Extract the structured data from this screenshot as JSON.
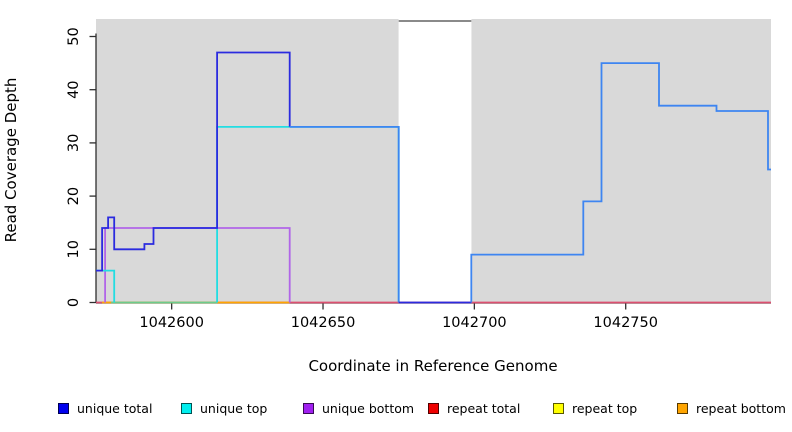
{
  "figure": {
    "background": "#ffffff",
    "plot_background": "#d9d9d9"
  },
  "chart_data": {
    "type": "line",
    "subtype": "step-coverage",
    "title": "",
    "xlabel": "Coordinate in Reference Genome",
    "ylabel": "Read Coverage Depth",
    "xlim": [
      1042575,
      1042798
    ],
    "ylim": [
      0,
      53
    ],
    "grid": false,
    "x_ticks": [
      {
        "value": 1042600,
        "label": "1042600"
      },
      {
        "value": 1042650,
        "label": "1042650"
      },
      {
        "value": 1042700,
        "label": "1042700"
      },
      {
        "value": 1042750,
        "label": "1042750"
      }
    ],
    "y_ticks": [
      {
        "value": 0,
        "label": "0"
      },
      {
        "value": 10,
        "label": "10"
      },
      {
        "value": 20,
        "label": "20"
      },
      {
        "value": 30,
        "label": "30"
      },
      {
        "value": 40,
        "label": "40"
      },
      {
        "value": 50,
        "label": "50"
      }
    ],
    "masked_region": {
      "x_start": 1042675,
      "x_end": 1042699,
      "fill": "#ffffff",
      "top_border_color": "#8a8a8a"
    },
    "series": [
      {
        "name": "repeat total",
        "segments": [
          {
            "color": "#dc5070",
            "points": [
              [
                1042575,
                0
              ]
            ],
            "end": 1042798
          }
        ]
      },
      {
        "name": "repeat bottom",
        "segments": [
          {
            "color": "#ffa500",
            "points": [
              [
                1042577,
                0
              ]
            ],
            "end": 1042639
          }
        ]
      },
      {
        "name": "repeat top",
        "segments": [
          {
            "color": "#6ccb8c",
            "points": [
              [
                1042580,
                0
              ]
            ],
            "end": 1042615
          }
        ]
      },
      {
        "name": "unique bottom",
        "segments": [
          {
            "color": "#b165e8",
            "points": [
              [
                1042578,
                0
              ],
              [
                1042578,
                14
              ],
              [
                1042639,
                0
              ]
            ],
            "end": 1042639
          }
        ]
      },
      {
        "name": "unique top",
        "segments": [
          {
            "color": "#22dde2",
            "points": [
              [
                1042575,
                6
              ],
              [
                1042581,
                0
              ]
            ],
            "end": 1042581
          },
          {
            "color": "#22dde2",
            "points": [
              [
                1042615,
                0
              ],
              [
                1042615,
                33
              ],
              [
                1042675,
                0
              ]
            ],
            "end": 1042675
          }
        ]
      },
      {
        "name": "unique total",
        "segments": [
          {
            "color": "#2b2bdf",
            "points": [
              [
                1042575,
                6
              ],
              [
                1042577,
                14
              ],
              [
                1042579,
                16
              ],
              [
                1042581,
                10
              ],
              [
                1042591,
                11
              ],
              [
                1042594,
                14
              ],
              [
                1042615,
                47
              ],
              [
                1042639,
                33
              ]
            ],
            "end": 1042639
          },
          {
            "color": "#3e85f1",
            "points": [
              [
                1042639,
                33
              ],
              [
                1042675,
                0
              ]
            ],
            "end": 1042675
          },
          {
            "color": "#2b2bdf",
            "points": [
              [
                1042675,
                0
              ]
            ],
            "end": 1042699
          },
          {
            "color": "#3e85f1",
            "points": [
              [
                1042699,
                0
              ],
              [
                1042699,
                9
              ],
              [
                1042736,
                19
              ],
              [
                1042742,
                45
              ],
              [
                1042761,
                37
              ],
              [
                1042780,
                36
              ],
              [
                1042797,
                25
              ]
            ],
            "end": 1042798
          }
        ]
      }
    ],
    "legend": {
      "position": "bottom",
      "entries": [
        {
          "label": "unique total",
          "color": "#0000ee"
        },
        {
          "label": "unique top",
          "color": "#00eeee"
        },
        {
          "label": "unique bottom",
          "color": "#a020f0"
        },
        {
          "label": "repeat total",
          "color": "#ee0000"
        },
        {
          "label": "repeat top",
          "color": "#ffff00"
        },
        {
          "label": "repeat bottom",
          "color": "#ffa500"
        }
      ]
    }
  }
}
